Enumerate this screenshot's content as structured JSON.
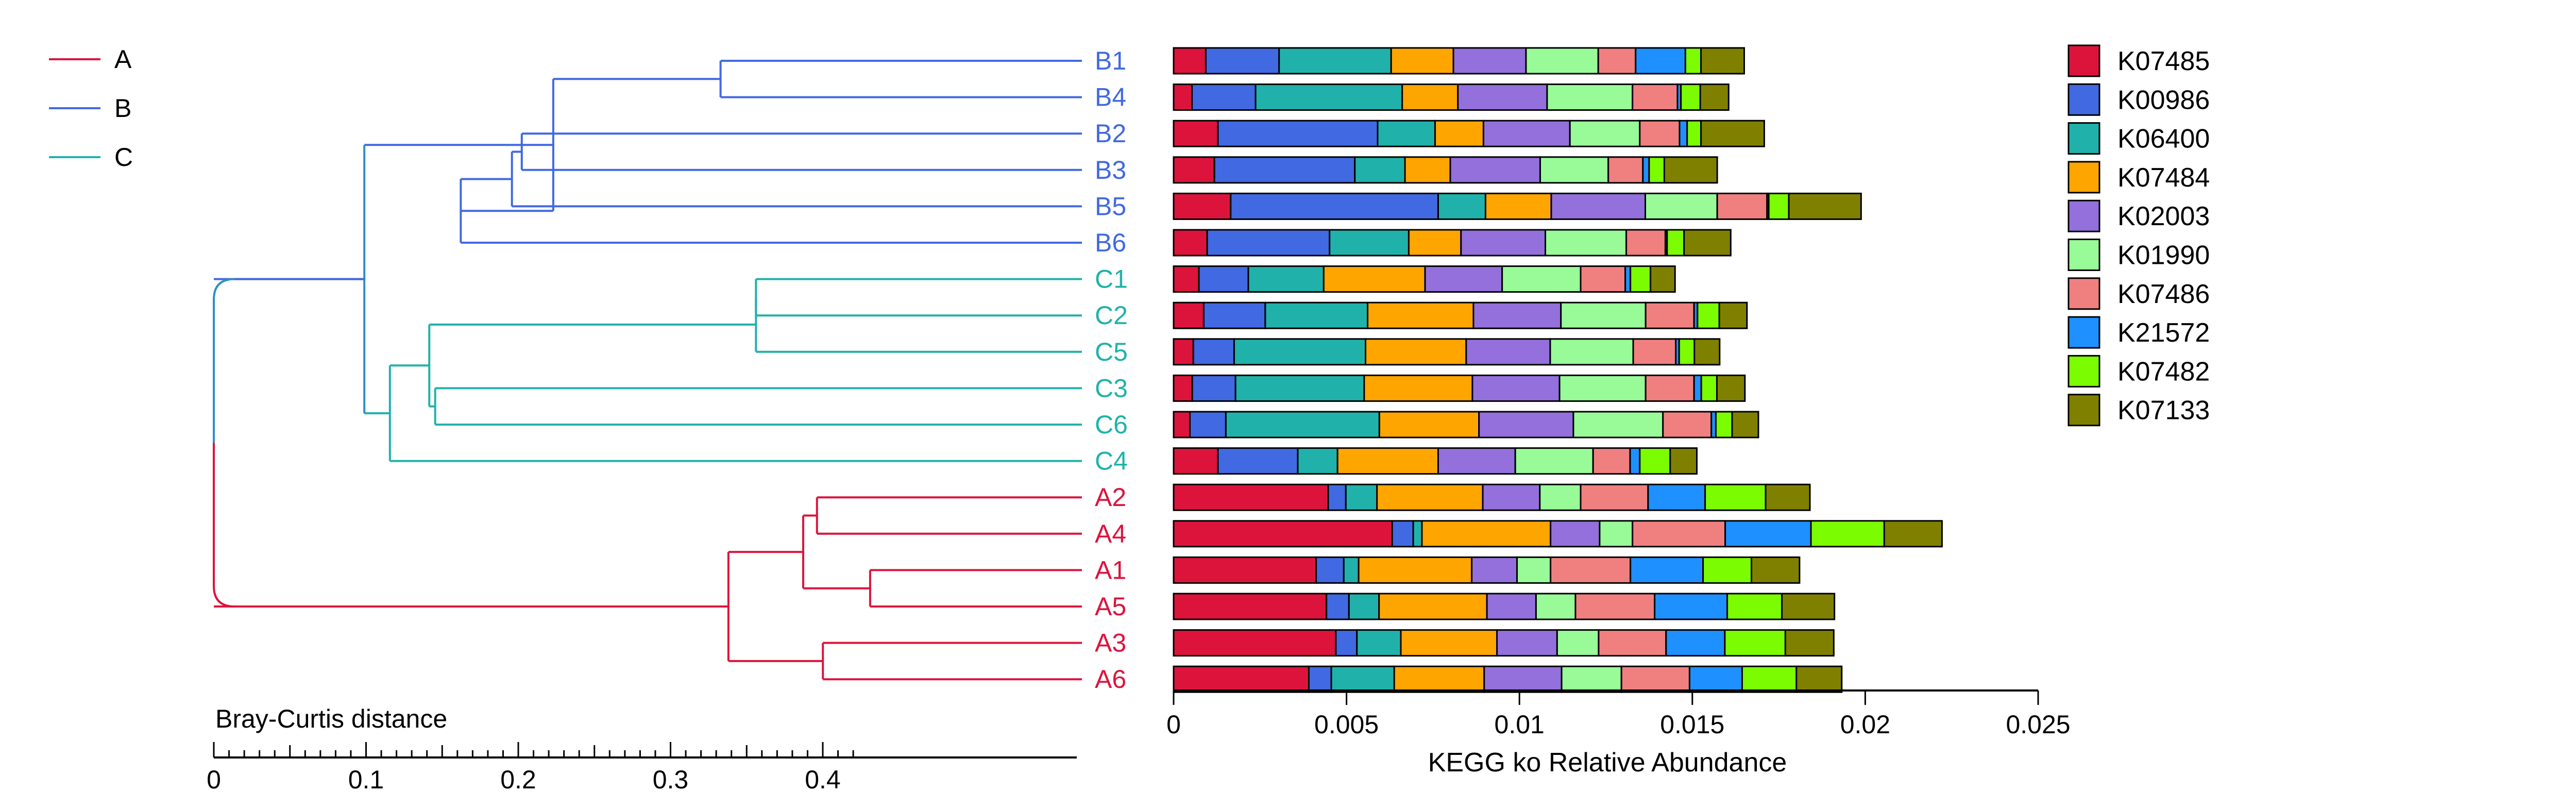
{
  "chart_data": [
    {
      "type": "dendrogram",
      "xlabel": "Bray-Curtis distance",
      "xlim": [
        0,
        0.42
      ],
      "xticks": [
        0,
        0.1,
        0.2,
        0.3,
        0.4
      ],
      "tick_labels": [
        "0",
        "0.1",
        "0.2",
        "0.3",
        "0.4"
      ],
      "legend": {
        "placement": "top-left",
        "items": [
          {
            "label": "A",
            "color": "#dc143c"
          },
          {
            "label": "B",
            "color": "#4169e1"
          },
          {
            "label": "C",
            "color": "#20b2aa"
          }
        ]
      },
      "leaves": [
        {
          "label": "B1",
          "group": "B"
        },
        {
          "label": "B4",
          "group": "B"
        },
        {
          "label": "B2",
          "group": "B"
        },
        {
          "label": "B3",
          "group": "B"
        },
        {
          "label": "B5",
          "group": "B"
        },
        {
          "label": "B6",
          "group": "B"
        },
        {
          "label": "C1",
          "group": "C"
        },
        {
          "label": "C2",
          "group": "C"
        },
        {
          "label": "C5",
          "group": "C"
        },
        {
          "label": "C3",
          "group": "C"
        },
        {
          "label": "C6",
          "group": "C"
        },
        {
          "label": "C4",
          "group": "C"
        },
        {
          "label": "A2",
          "group": "A"
        },
        {
          "label": "A4",
          "group": "A"
        },
        {
          "label": "A1",
          "group": "A"
        },
        {
          "label": "A5",
          "group": "A"
        },
        {
          "label": "A3",
          "group": "A"
        },
        {
          "label": "A6",
          "group": "A"
        }
      ],
      "merges": [
        {
          "id": "m1",
          "height": 0.181,
          "children": [
            "B1",
            "B4"
          ]
        },
        {
          "id": "m2",
          "height": 0.282,
          "children": [
            "B2",
            "B3"
          ]
        },
        {
          "id": "m3",
          "height": 0.287,
          "children": [
            "m2",
            "B5"
          ]
        },
        {
          "id": "m4",
          "height": 0.313,
          "children": [
            "m3",
            "B6"
          ]
        },
        {
          "id": "m5",
          "height": 0.266,
          "children": [
            "m1",
            "m4"
          ]
        },
        {
          "id": "m6",
          "height": 0.163,
          "children": [
            "C1",
            "C2"
          ]
        },
        {
          "id": "m7",
          "height": 0.163,
          "children": [
            "m6",
            "C5"
          ]
        },
        {
          "id": "m8",
          "height": 0.326,
          "children": [
            "C3",
            "C6"
          ]
        },
        {
          "id": "m9",
          "height": 0.329,
          "children": [
            "m7",
            "m8"
          ]
        },
        {
          "id": "m10",
          "height": 0.349,
          "children": [
            "m9",
            "C4"
          ]
        },
        {
          "id": "m11",
          "height": 0.362,
          "children": [
            "m5",
            "m10"
          ]
        },
        {
          "id": "m12",
          "height": 0.132,
          "children": [
            "A2",
            "A4"
          ]
        },
        {
          "id": "m13",
          "height": 0.105,
          "children": [
            "A1",
            "A5"
          ]
        },
        {
          "id": "m14",
          "height": 0.139,
          "children": [
            "m12",
            "m13"
          ]
        },
        {
          "id": "m15",
          "height": 0.129,
          "children": [
            "A3",
            "A6"
          ]
        },
        {
          "id": "m16",
          "height": 0.177,
          "children": [
            "m14",
            "m15"
          ]
        },
        {
          "id": "m17",
          "height": 0.423,
          "children": [
            "m11",
            "m16"
          ]
        }
      ]
    },
    {
      "type": "bar",
      "orientation": "horizontal",
      "stacked": true,
      "xlabel": "KEGG ko Relative Abundance",
      "xlim": [
        0,
        0.025
      ],
      "xticks": [
        0,
        0.005,
        0.01,
        0.015,
        0.02,
        0.025
      ],
      "tick_labels": [
        "0",
        "0.005",
        "0.01",
        "0.015",
        "0.02",
        "0.025"
      ],
      "legend_placement": "right",
      "categories": [
        "B1",
        "B4",
        "B2",
        "B3",
        "B5",
        "B6",
        "C1",
        "C2",
        "C5",
        "C3",
        "C6",
        "C4",
        "A2",
        "A4",
        "A1",
        "A5",
        "A3",
        "A6"
      ],
      "series": [
        {
          "name": "K07485",
          "color": "#dc143c",
          "values": [
            0.00093,
            0.00053,
            0.00128,
            0.00118,
            0.00165,
            0.00097,
            0.00073,
            0.00087,
            0.00057,
            0.00054,
            0.00047,
            0.00128,
            0.00447,
            0.00632,
            0.00412,
            0.00442,
            0.00469,
            0.00391
          ]
        },
        {
          "name": "K00986",
          "color": "#4169e1",
          "values": [
            0.00212,
            0.00184,
            0.00462,
            0.00406,
            0.006,
            0.00354,
            0.00143,
            0.00178,
            0.00118,
            0.00125,
            0.00104,
            0.00231,
            0.00051,
            0.00061,
            0.0008,
            0.00065,
            0.00061,
            0.00065
          ]
        },
        {
          "name": "K06400",
          "color": "#20b2aa",
          "values": [
            0.00324,
            0.00424,
            0.00166,
            0.00145,
            0.00137,
            0.00229,
            0.00218,
            0.00296,
            0.0038,
            0.00372,
            0.00444,
            0.00115,
            0.0009,
            0.00025,
            0.00043,
            0.00087,
            0.00127,
            0.00182
          ]
        },
        {
          "name": "K07484",
          "color": "#ffa500",
          "values": [
            0.0018,
            0.00161,
            0.0014,
            0.00131,
            0.0019,
            0.00151,
            0.00293,
            0.00306,
            0.00291,
            0.00313,
            0.00288,
            0.00291,
            0.00306,
            0.00372,
            0.00327,
            0.00312,
            0.00278,
            0.0026
          ]
        },
        {
          "name": "K02003",
          "color": "#9370db",
          "values": [
            0.0021,
            0.00258,
            0.0025,
            0.0026,
            0.00272,
            0.00244,
            0.00223,
            0.00253,
            0.00243,
            0.00252,
            0.00273,
            0.00223,
            0.00165,
            0.00142,
            0.00131,
            0.00142,
            0.00174,
            0.00224
          ]
        },
        {
          "name": "K01990",
          "color": "#98fb98",
          "values": [
            0.00209,
            0.00247,
            0.00202,
            0.00197,
            0.00208,
            0.00234,
            0.00227,
            0.00245,
            0.0024,
            0.00249,
            0.00259,
            0.00225,
            0.00118,
            0.00095,
            0.00097,
            0.00114,
            0.0012,
            0.00173
          ]
        },
        {
          "name": "K07486",
          "color": "#f08080",
          "values": [
            0.00108,
            0.0013,
            0.00115,
            0.001,
            0.00144,
            0.00113,
            0.00129,
            0.0014,
            0.00123,
            0.0014,
            0.0014,
            0.00107,
            0.00195,
            0.00268,
            0.00231,
            0.00229,
            0.00195,
            0.00197
          ]
        },
        {
          "name": "K21572",
          "color": "#1e90ff",
          "values": [
            0.00144,
            0.0001,
            0.00022,
            0.00018,
            5e-05,
            5e-05,
            0.00015,
            0.0001,
            0.0001,
            0.00021,
            0.00013,
            0.00028,
            0.00165,
            0.00248,
            0.0021,
            0.0021,
            0.0017,
            0.00152
          ]
        },
        {
          "name": "K07482",
          "color": "#7cfc00",
          "values": [
            0.00045,
            0.00056,
            0.0004,
            0.00044,
            0.00058,
            0.00049,
            0.00058,
            0.00063,
            0.00044,
            0.00045,
            0.00047,
            0.00088,
            0.00175,
            0.00212,
            0.0014,
            0.00158,
            0.00175,
            0.00157
          ]
        },
        {
          "name": "K07133",
          "color": "#808000",
          "values": [
            0.00125,
            0.00082,
            0.00183,
            0.00153,
            0.00209,
            0.00135,
            0.00071,
            0.0008,
            0.00073,
            0.00081,
            0.00076,
            0.00077,
            0.00128,
            0.00167,
            0.00139,
            0.00152,
            0.0014,
            0.00131
          ]
        }
      ]
    }
  ]
}
